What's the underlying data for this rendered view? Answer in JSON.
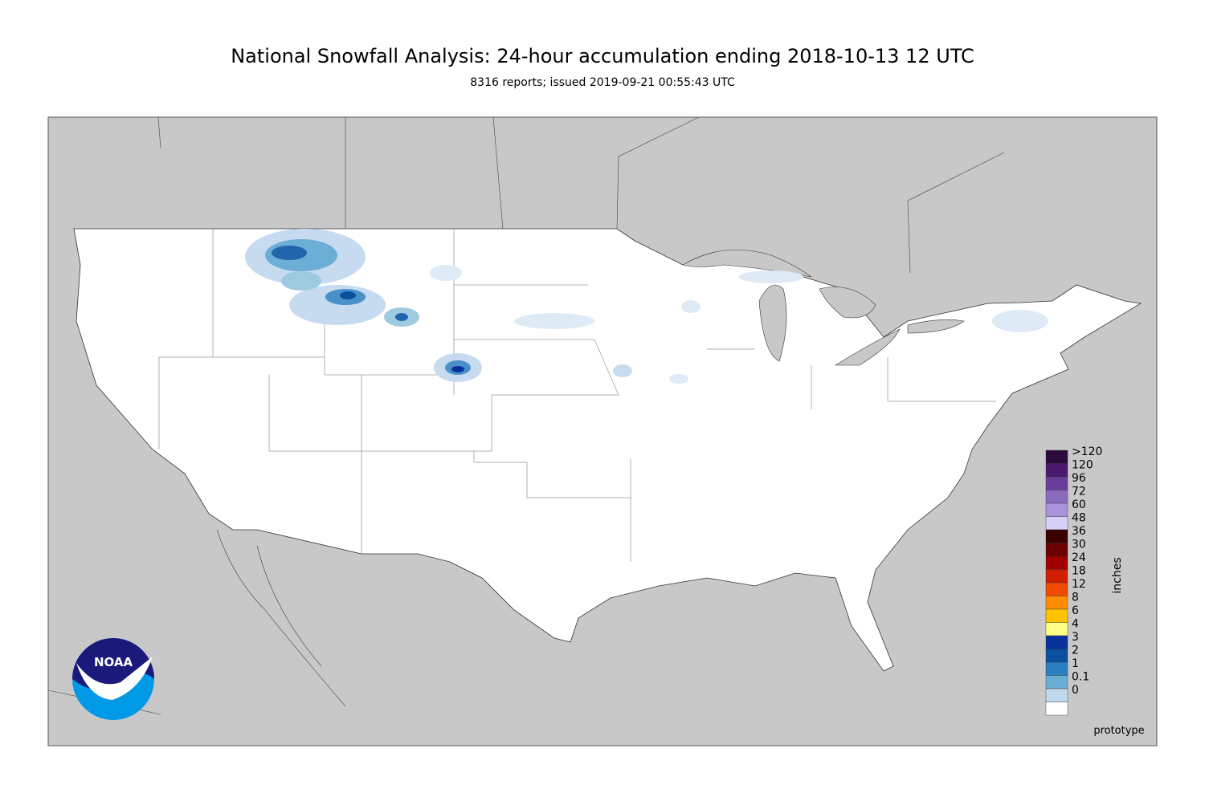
{
  "header": {
    "title": "National Snowfall Analysis: 24-hour accumulation ending 2018-10-13 12 UTC",
    "subtitle": "8316 reports; issued 2019-09-21 00:55:43 UTC"
  },
  "legend": {
    "unit": "inches",
    "items": [
      {
        "label": ">120",
        "color": "#2b0a3d"
      },
      {
        "label": "120",
        "color": "#4b1a6e"
      },
      {
        "label": "96",
        "color": "#6b3d9a"
      },
      {
        "label": "72",
        "color": "#8b6bc0"
      },
      {
        "label": "60",
        "color": "#a993dc"
      },
      {
        "label": "48",
        "color": "#d6cff6"
      },
      {
        "label": "36",
        "color": "#3a0000"
      },
      {
        "label": "30",
        "color": "#6b0000"
      },
      {
        "label": "24",
        "color": "#a00000"
      },
      {
        "label": "18",
        "color": "#d21e00"
      },
      {
        "label": "12",
        "color": "#f04a00"
      },
      {
        "label": "8",
        "color": "#ff8c00"
      },
      {
        "label": "6",
        "color": "#ffc300"
      },
      {
        "label": "4",
        "color": "#ffff88"
      },
      {
        "label": "3",
        "color": "#08319c"
      },
      {
        "label": "2",
        "color": "#0a4fa0"
      },
      {
        "label": "1",
        "color": "#2c7fc0"
      },
      {
        "label": "0.1",
        "color": "#6aaed6"
      },
      {
        "label": "0",
        "color": "#c0d8ec"
      }
    ]
  },
  "logo": {
    "text": "NOAA"
  },
  "footer": {
    "note": "prototype"
  }
}
